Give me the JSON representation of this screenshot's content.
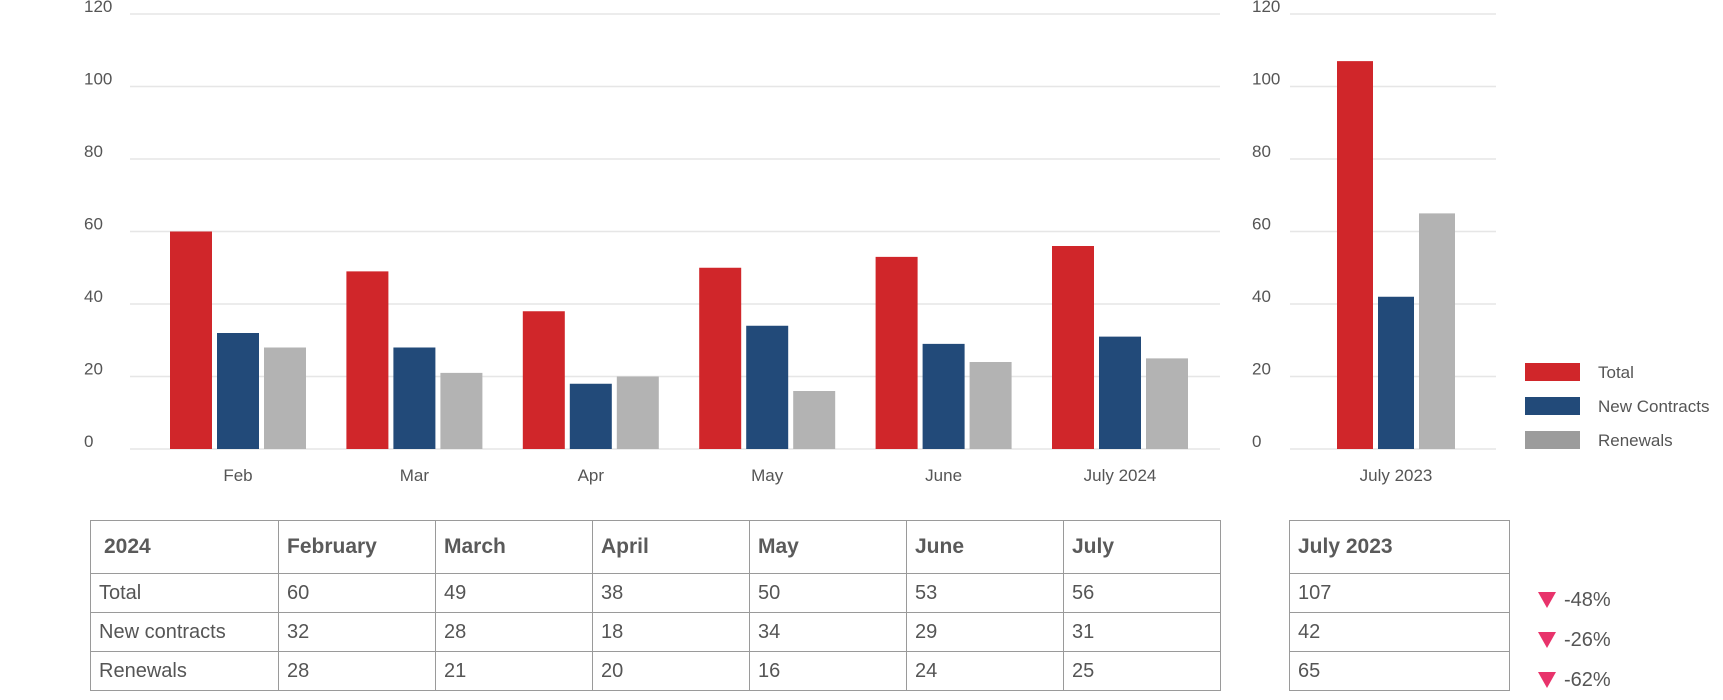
{
  "chart_data": [
    {
      "type": "bar",
      "categories": [
        "Feb",
        "Mar",
        "Apr",
        "May",
        "June",
        "July 2024"
      ],
      "series": [
        {
          "name": "Total",
          "values": [
            60,
            49,
            38,
            50,
            53,
            56
          ]
        },
        {
          "name": "New Contracts",
          "values": [
            32,
            28,
            18,
            34,
            29,
            31
          ]
        },
        {
          "name": "Renewals",
          "values": [
            28,
            21,
            20,
            16,
            24,
            25
          ]
        }
      ],
      "ylim": [
        0,
        120
      ],
      "yticks": [
        0,
        20,
        40,
        60,
        80,
        100,
        120
      ],
      "grid": true,
      "legend": "none"
    },
    {
      "type": "bar",
      "categories": [
        "July 2023"
      ],
      "series": [
        {
          "name": "Total",
          "values": [
            107
          ]
        },
        {
          "name": "New Contracts",
          "values": [
            42
          ]
        },
        {
          "name": "Renewals",
          "values": [
            65
          ]
        }
      ],
      "ylim": [
        0,
        120
      ],
      "yticks": [
        0,
        20,
        40,
        60,
        80,
        100,
        120
      ],
      "grid": true,
      "legend": "right"
    }
  ],
  "colors": {
    "total": "#d0262a",
    "new_contracts": "#224a79",
    "renewals": "#b3b3b3",
    "legend_renewals": "#9c9c9c",
    "down_arrow": "#e8336b"
  },
  "table": {
    "headers": [
      "2024",
      "February",
      "March",
      "April",
      "May",
      "June",
      "July"
    ],
    "rows": [
      [
        "Total",
        "60",
        "49",
        "38",
        "50",
        "53",
        "56"
      ],
      [
        "New contracts",
        "32",
        "28",
        "18",
        "34",
        "29",
        "31"
      ],
      [
        "Renewals",
        "28",
        "21",
        "20",
        "16",
        "24",
        "25"
      ]
    ]
  },
  "side_table": {
    "header": "July 2023",
    "rows": [
      "107",
      "42",
      "65"
    ]
  },
  "changes": [
    {
      "icon": "down-triangle-icon",
      "value": "-48%"
    },
    {
      "icon": "down-triangle-icon",
      "value": "-26%"
    },
    {
      "icon": "down-triangle-icon",
      "value": "-62%"
    }
  ]
}
